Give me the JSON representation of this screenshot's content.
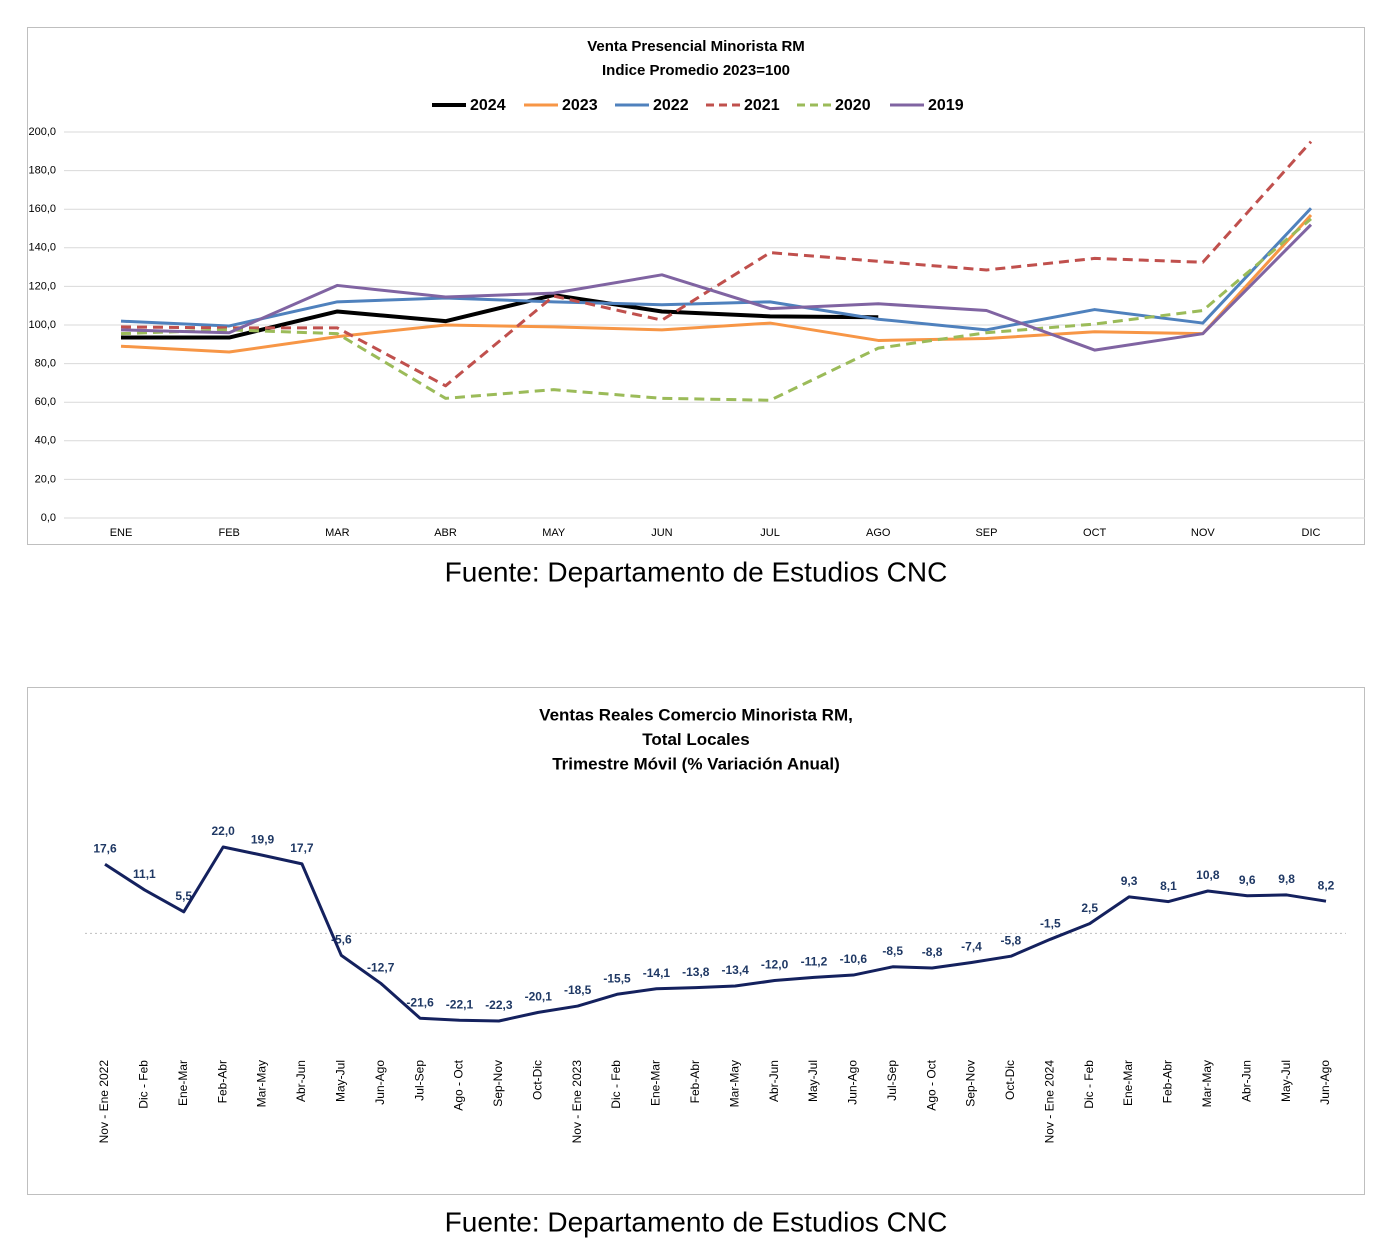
{
  "chart_data": [
    {
      "type": "line",
      "title": [
        "Venta Presencial Minorista RM",
        "Indice Promedio 2023=100"
      ],
      "categories": [
        "ENE",
        "FEB",
        "MAR",
        "ABR",
        "MAY",
        "JUN",
        "JUL",
        "AGO",
        "SEP",
        "OCT",
        "NOV",
        "DIC"
      ],
      "ylim": [
        0,
        200
      ],
      "yticks": [
        {
          "value": 0,
          "label": "0,0"
        },
        {
          "value": 20,
          "label": "20,0"
        },
        {
          "value": 40,
          "label": "40,0"
        },
        {
          "value": 60,
          "label": "60,0"
        },
        {
          "value": 80,
          "label": "80,0"
        },
        {
          "value": 100,
          "label": "100,0"
        },
        {
          "value": 120,
          "label": "120,0"
        },
        {
          "value": 140,
          "label": "140,0"
        },
        {
          "value": 160,
          "label": "160,0"
        },
        {
          "value": 180,
          "label": "180,0"
        },
        {
          "value": 200,
          "label": "200,0"
        }
      ],
      "grid": true,
      "legend": "top",
      "series": [
        {
          "name": "2024",
          "color": "#000000",
          "dash": false,
          "values": [
            93.5,
            93.5,
            107,
            102,
            115.5,
            107,
            104.5,
            104,
            null,
            null,
            null,
            null
          ]
        },
        {
          "name": "2023",
          "color": "#f79646",
          "dash": false,
          "values": [
            89,
            86,
            94,
            100,
            99,
            97.5,
            101,
            92,
            93,
            96.5,
            95.5,
            157
          ]
        },
        {
          "name": "2022",
          "color": "#4f81bd",
          "dash": false,
          "values": [
            102,
            99.5,
            112,
            114,
            112,
            110.5,
            112,
            103,
            97.5,
            108,
            101,
            160.5
          ]
        },
        {
          "name": "2021",
          "color": "#c0504d",
          "dash": true,
          "values": [
            99,
            98.5,
            98.5,
            68.5,
            115,
            102.5,
            137.5,
            133,
            128.5,
            134.5,
            132.5,
            195
          ]
        },
        {
          "name": "2020",
          "color": "#9bbb59",
          "dash": true,
          "values": [
            95.5,
            97.5,
            95.5,
            62,
            66.5,
            62,
            61,
            88,
            96,
            100.5,
            107.5,
            155
          ]
        },
        {
          "name": "2019",
          "color": "#8064a2",
          "dash": false,
          "values": [
            97.5,
            96,
            120.5,
            114.5,
            116.5,
            126,
            108.5,
            111,
            107.5,
            87,
            95.5,
            152
          ]
        }
      ],
      "source": "Fuente: Departamento de Estudios CNC"
    },
    {
      "type": "line",
      "title": [
        "Ventas Reales Comercio Minorista RM,",
        "Total Locales",
        "Trimestre Móvil (% Variación Anual)"
      ],
      "categories": [
        "Nov - Ene 2022",
        "Dic - Feb",
        "Ene-Mar",
        "Feb-Abr",
        "Mar-May",
        "Abr-Jun",
        "May-Jul",
        "Jun-Ago",
        "Jul-Sep",
        "Ago - Oct",
        "Sep-Nov",
        "Oct-Dic",
        "Nov - Ene 2023",
        "Dic - Feb",
        "Ene-Mar",
        "Feb-Abr",
        "Mar-May",
        "Abr-Jun",
        "May-Jul",
        "Jun-Ago",
        "Jul-Sep",
        "Ago - Oct",
        "Sep-Nov",
        "Oct-Dic",
        "Nov - Ene 2024",
        "Dic - Feb",
        "Ene-Mar",
        "Feb-Abr",
        "Mar-May",
        "Abr-Jun",
        "May-Jul",
        "Jun-Ago"
      ],
      "color": "#14215e",
      "values": [
        17.6,
        11.1,
        5.5,
        22.0,
        19.9,
        17.7,
        -5.6,
        -12.7,
        -21.6,
        -22.1,
        -22.3,
        -20.1,
        -18.5,
        -15.5,
        -14.1,
        -13.8,
        -13.4,
        -12.0,
        -11.2,
        -10.6,
        -8.5,
        -8.8,
        -7.4,
        -5.8,
        -1.5,
        2.5,
        9.3,
        8.1,
        10.8,
        9.6,
        9.8,
        8.2
      ],
      "value_labels": [
        "17,6",
        "11,1",
        "5,5",
        "22,0",
        "19,9",
        "17,7",
        "-5,6",
        "-12,7",
        "-21,6",
        "-22,1",
        "-22,3",
        "-20,1",
        "-18,5",
        "-15,5",
        "-14,1",
        "-13,8",
        "-13,4",
        "-12,0",
        "-11,2",
        "-10,6",
        "-8,5",
        "-8,8",
        "-7,4",
        "-5,8",
        "-1,5",
        "2,5",
        "9,3",
        "8,1",
        "10,8",
        "9,6",
        "9,8",
        "8,2"
      ],
      "source": "Fuente: Departamento de Estudios CNC"
    }
  ]
}
